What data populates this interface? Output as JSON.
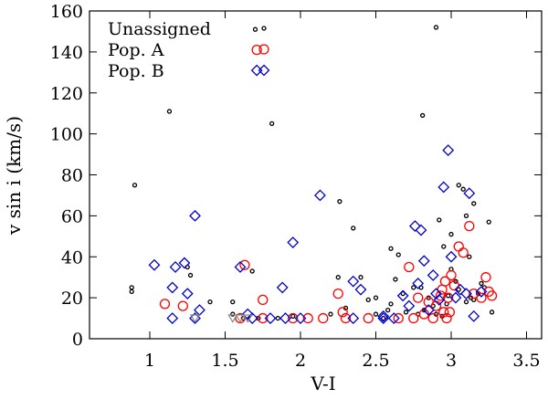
{
  "chart_data": {
    "type": "scatter",
    "title": "",
    "xlabel": "V-I",
    "ylabel": "v sin i (km/s)",
    "xlim": [
      0.6,
      3.6
    ],
    "ylim": [
      0,
      160
    ],
    "xticks": [
      1,
      1.5,
      2,
      2.5,
      3,
      3.5
    ],
    "xtick_labels": [
      "1",
      "1.5",
      "2",
      "2.5",
      "3",
      "3.5"
    ],
    "yticks": [
      0,
      20,
      40,
      60,
      80,
      100,
      120,
      140,
      160
    ],
    "ytick_labels": [
      "0",
      "20",
      "40",
      "60",
      "80",
      "100",
      "120",
      "140",
      "160"
    ],
    "grid": false,
    "legend_position": "top-left",
    "series": [
      {
        "name": "Unassigned",
        "marker": "small-circle",
        "color": "#000000",
        "points": [
          [
            0.9,
            75
          ],
          [
            0.88,
            25
          ],
          [
            0.88,
            23
          ],
          [
            1.13,
            111
          ],
          [
            1.7,
            151
          ],
          [
            2.9,
            152
          ],
          [
            2.81,
            109
          ],
          [
            1.81,
            105
          ],
          [
            1.25,
            35
          ],
          [
            1.27,
            31
          ],
          [
            1.4,
            18
          ],
          [
            1.55,
            18
          ],
          [
            1.55,
            12
          ],
          [
            1.62,
            10
          ],
          [
            1.68,
            33
          ],
          [
            1.72,
            10
          ],
          [
            2.26,
            67
          ],
          [
            2.35,
            54
          ],
          [
            2.25,
            30
          ],
          [
            2.4,
            30
          ],
          [
            2.45,
            19
          ],
          [
            2.5,
            12
          ],
          [
            2.55,
            10
          ],
          [
            2.2,
            12
          ],
          [
            2.6,
            44
          ],
          [
            2.65,
            41
          ],
          [
            2.6,
            17
          ],
          [
            2.7,
            13
          ],
          [
            2.75,
            25
          ],
          [
            2.78,
            12
          ],
          [
            2.8,
            25
          ],
          [
            2.85,
            20
          ],
          [
            2.9,
            12
          ],
          [
            2.92,
            58
          ],
          [
            2.95,
            45
          ],
          [
            3.0,
            51
          ],
          [
            3.05,
            75
          ],
          [
            3.1,
            60
          ],
          [
            3.08,
            73
          ],
          [
            3.15,
            66
          ],
          [
            3.12,
            40
          ],
          [
            3.2,
            27
          ],
          [
            3.25,
            57
          ],
          [
            3.27,
            13
          ],
          [
            3.05,
            24
          ],
          [
            3.1,
            18
          ],
          [
            3.15,
            19
          ],
          [
            3.18,
            22
          ],
          [
            3.22,
            25
          ],
          [
            2.98,
            21
          ],
          [
            2.88,
            16
          ],
          [
            2.82,
            14
          ],
          [
            2.94,
            11
          ],
          [
            2.68,
            22
          ],
          [
            3.0,
            34
          ],
          [
            3.03,
            28
          ],
          [
            3.13,
            20
          ],
          [
            2.97,
            17
          ],
          [
            2.63,
            29
          ],
          [
            2.58,
            14
          ],
          [
            2.5,
            20
          ],
          [
            2.3,
            15
          ],
          [
            1.95,
            11
          ],
          [
            1.85,
            10
          ]
        ]
      },
      {
        "name": "Pop. A",
        "marker": "circle",
        "color": "#ff0000",
        "points": [
          [
            1.71,
            141
          ],
          [
            1.1,
            17
          ],
          [
            1.22,
            16
          ],
          [
            1.63,
            36
          ],
          [
            1.75,
            19
          ],
          [
            2.25,
            22
          ],
          [
            2.28,
            13
          ],
          [
            2.72,
            35
          ],
          [
            2.85,
            18
          ],
          [
            2.9,
            16
          ],
          [
            2.93,
            21
          ],
          [
            2.95,
            13
          ],
          [
            2.98,
            20
          ],
          [
            3.0,
            31
          ],
          [
            3.05,
            45
          ],
          [
            3.08,
            42
          ],
          [
            3.12,
            55
          ],
          [
            3.15,
            22
          ],
          [
            3.2,
            20
          ],
          [
            3.23,
            30
          ],
          [
            3.25,
            23
          ],
          [
            3.27,
            21
          ],
          [
            2.99,
            13
          ],
          [
            2.96,
            28
          ],
          [
            2.78,
            20
          ],
          [
            2.82,
            12
          ],
          [
            2.94,
            24
          ],
          [
            3.02,
            26
          ],
          [
            1.6,
            10
          ],
          [
            1.75,
            10
          ],
          [
            1.95,
            10
          ],
          [
            2.05,
            10
          ],
          [
            2.15,
            10
          ],
          [
            2.3,
            10
          ],
          [
            2.45,
            10
          ],
          [
            2.65,
            10
          ],
          [
            2.75,
            10
          ],
          [
            2.88,
            10
          ],
          [
            2.97,
            10
          ]
        ]
      },
      {
        "name": "Pop. B",
        "marker": "diamond",
        "color": "#0000cc",
        "points": [
          [
            1.71,
            131
          ],
          [
            1.03,
            36
          ],
          [
            1.15,
            25
          ],
          [
            1.17,
            35
          ],
          [
            1.23,
            37
          ],
          [
            1.25,
            22
          ],
          [
            1.3,
            60
          ],
          [
            1.33,
            14
          ],
          [
            1.6,
            35
          ],
          [
            1.65,
            12
          ],
          [
            1.88,
            25
          ],
          [
            1.95,
            47
          ],
          [
            2.13,
            70
          ],
          [
            2.35,
            28
          ],
          [
            2.4,
            24
          ],
          [
            2.55,
            11
          ],
          [
            2.68,
            21
          ],
          [
            2.72,
            16
          ],
          [
            2.76,
            55
          ],
          [
            2.8,
            53
          ],
          [
            2.82,
            38
          ],
          [
            2.85,
            14
          ],
          [
            2.88,
            31
          ],
          [
            2.9,
            22
          ],
          [
            2.92,
            19
          ],
          [
            2.95,
            74
          ],
          [
            2.98,
            92
          ],
          [
            3.0,
            40
          ],
          [
            3.03,
            20
          ],
          [
            3.06,
            24
          ],
          [
            3.1,
            22
          ],
          [
            3.12,
            71
          ],
          [
            3.15,
            11
          ],
          [
            3.2,
            23
          ],
          [
            2.78,
            27
          ],
          [
            1.15,
            10
          ],
          [
            1.3,
            10
          ],
          [
            1.68,
            10
          ],
          [
            1.8,
            10
          ],
          [
            1.9,
            10
          ],
          [
            2.0,
            10
          ],
          [
            2.35,
            10
          ],
          [
            2.55,
            10
          ],
          [
            2.62,
            10
          ]
        ]
      },
      {
        "name": "",
        "marker": "triangle-down",
        "color": "#888888",
        "points": [
          [
            1.3,
            10
          ],
          [
            1.55,
            10
          ],
          [
            1.6,
            10
          ],
          [
            1.65,
            10
          ]
        ]
      }
    ]
  }
}
